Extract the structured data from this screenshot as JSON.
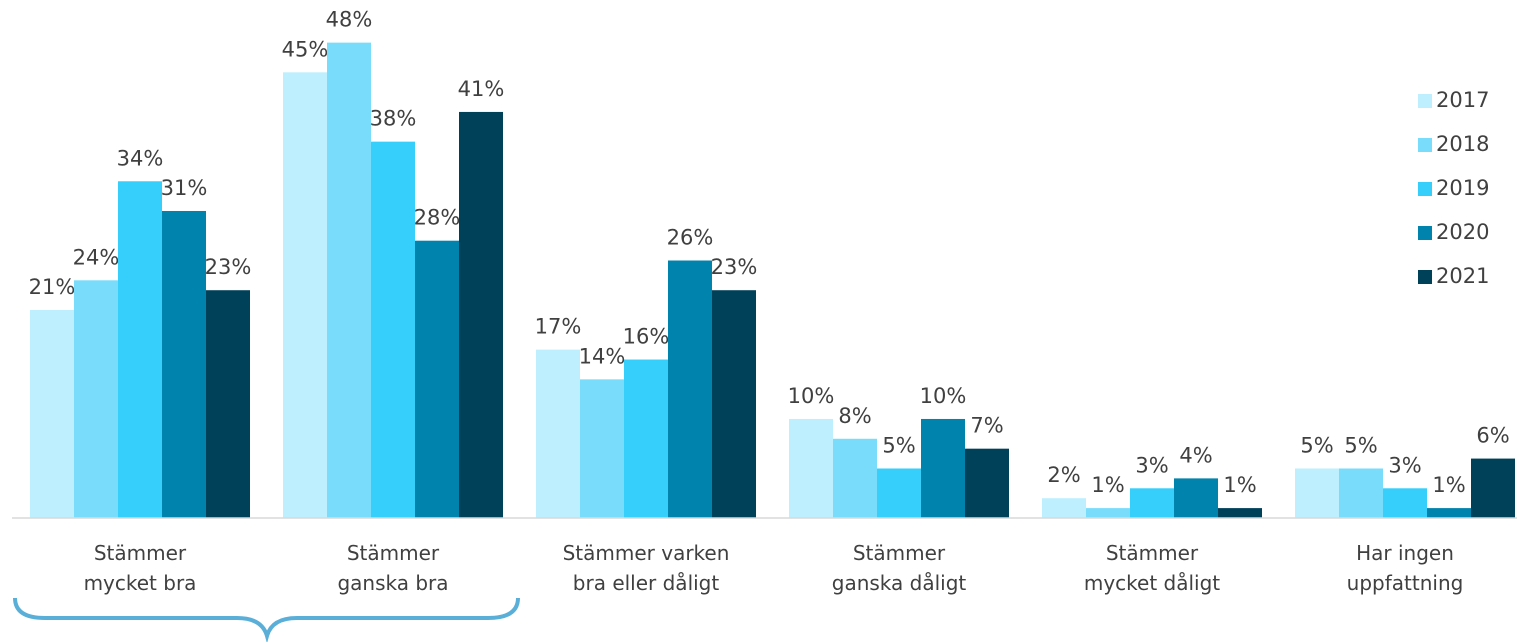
{
  "chart_data": {
    "type": "bar",
    "categories": [
      "Stämmer\nmycket bra",
      "Stämmer\nganska bra",
      "Stämmer varken\nbra eller dåligt",
      "Stämmer\nganska dåligt",
      "Stämmer\nmycket dåligt",
      "Har ingen\nuppfattning"
    ],
    "series": [
      {
        "name": "2017",
        "color": "#bdefff",
        "values": [
          21,
          45,
          17,
          10,
          2,
          5
        ]
      },
      {
        "name": "2018",
        "color": "#7adcfb",
        "values": [
          24,
          48,
          14,
          8,
          1,
          5
        ]
      },
      {
        "name": "2019",
        "color": "#36cffc",
        "values": [
          34,
          38,
          16,
          5,
          3,
          3
        ]
      },
      {
        "name": "2020",
        "color": "#0083ad",
        "values": [
          31,
          28,
          26,
          10,
          4,
          1
        ]
      },
      {
        "name": "2021",
        "color": "#00415a",
        "values": [
          23,
          41,
          23,
          7,
          1,
          6
        ]
      }
    ],
    "value_labels": [
      [
        "21%",
        "45%",
        "17%",
        "10%",
        "2%",
        "5%"
      ],
      [
        "24%",
        "48%",
        "14%",
        "8%",
        "1%",
        "5%"
      ],
      [
        "34%",
        "38%",
        "16%",
        "5%",
        "3%",
        "3%"
      ],
      [
        "31%",
        "28%",
        "26%",
        "10%",
        "4%",
        "1%"
      ],
      [
        "23%",
        "41%",
        "23%",
        "7%",
        "1%",
        "6%"
      ]
    ],
    "ylim": [
      0,
      52
    ],
    "legend": "right"
  }
}
